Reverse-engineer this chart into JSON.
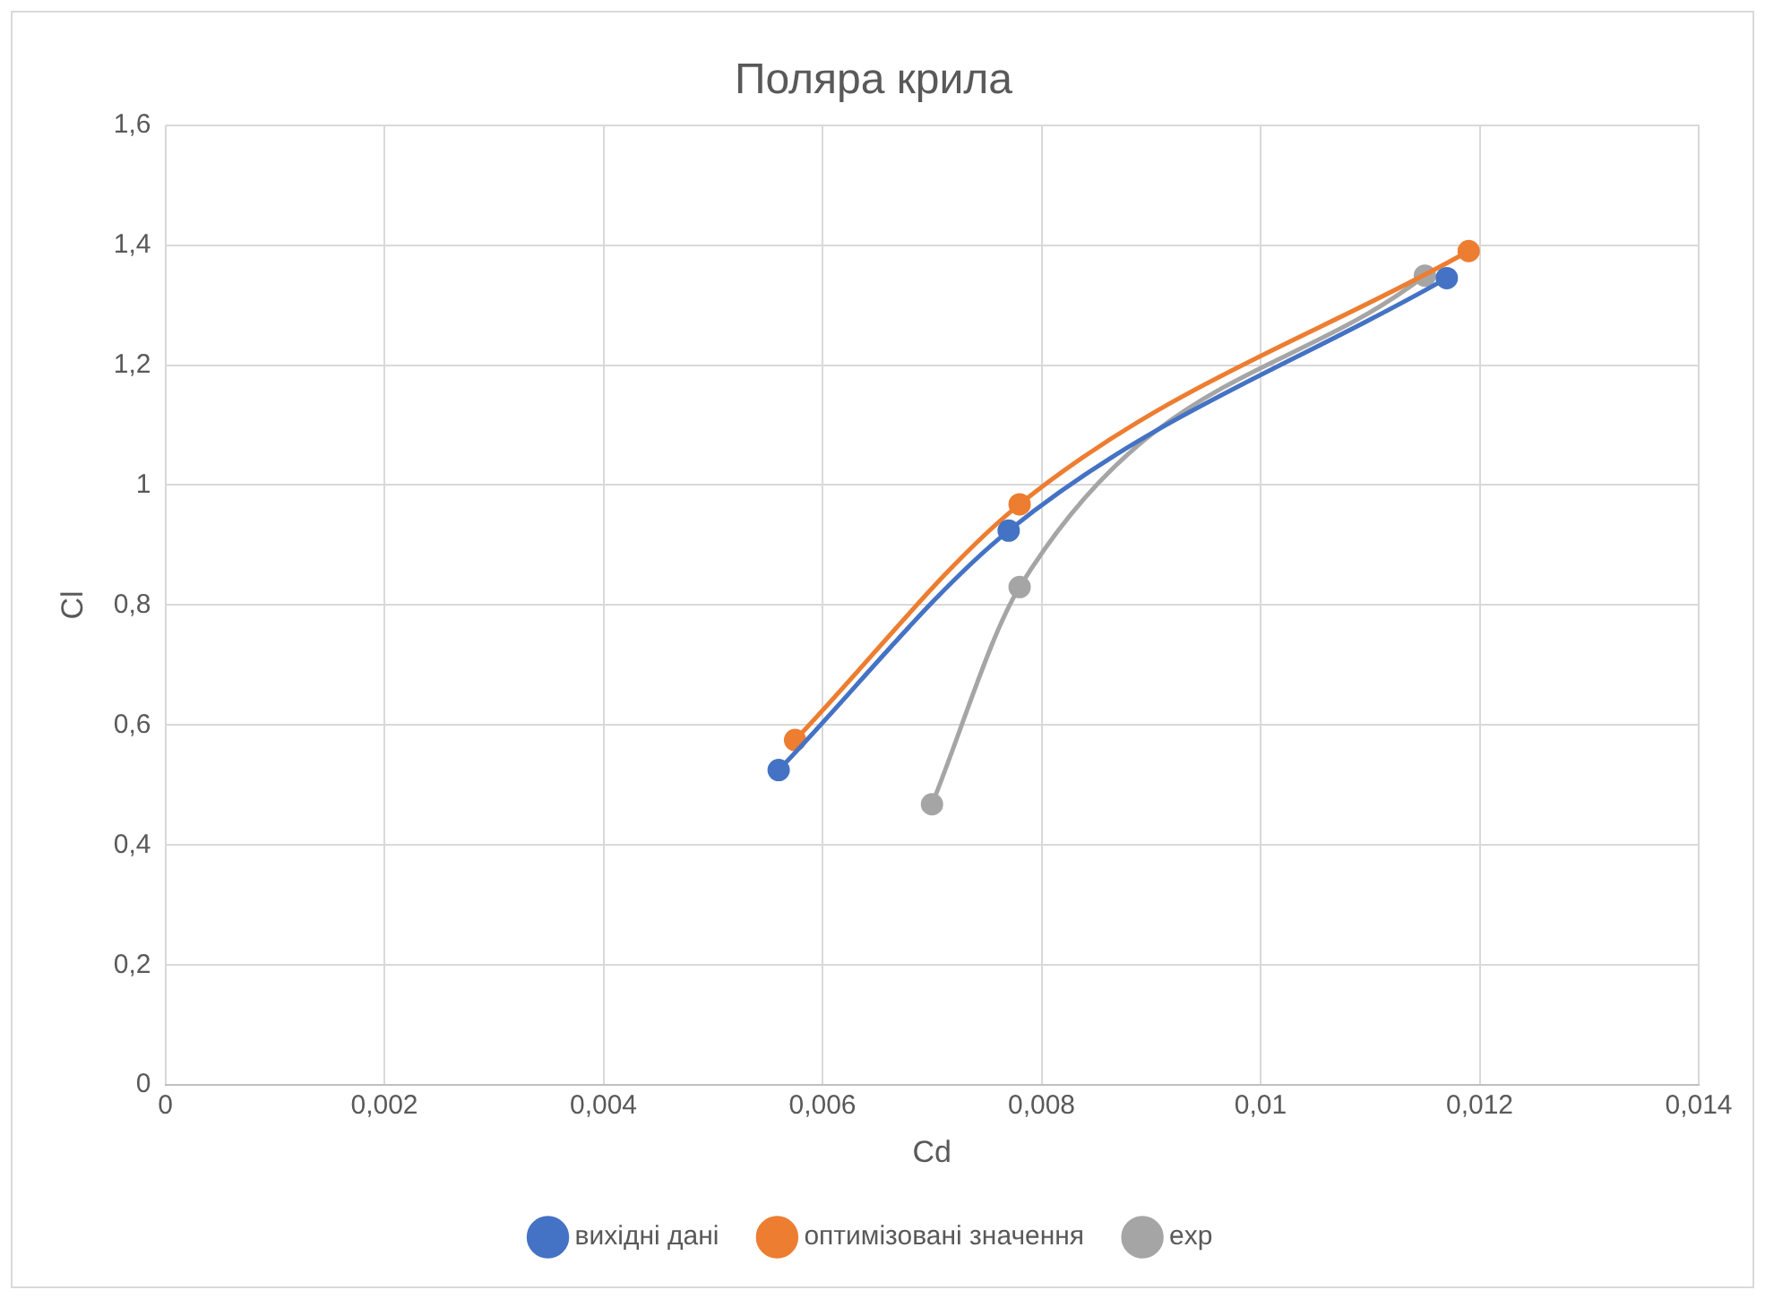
{
  "chart_data": {
    "type": "line",
    "title": "Поляра крила",
    "xlabel": "Cd",
    "ylabel": "Cl",
    "series": [
      {
        "name": "вихідні дані",
        "color": "#4472c4",
        "x": [
          0.0056,
          0.0077,
          0.0117
        ],
        "values": [
          0.525,
          0.924,
          1.345
        ]
      },
      {
        "name": "оптимізовані значення",
        "color": "#ed7d31",
        "x": [
          0.00575,
          0.0078,
          0.0119
        ],
        "values": [
          0.575,
          0.968,
          1.39
        ]
      },
      {
        "name": "exp",
        "color": "#a5a5a5",
        "x": [
          0.007,
          0.0078,
          0.0115
        ],
        "values": [
          0.468,
          0.83,
          1.349
        ]
      }
    ],
    "xlim": [
      0,
      0.014
    ],
    "xticks": [
      0,
      {
        "value": 0.002,
        "label": "0,002"
      },
      {
        "value": 0.004,
        "label": "0,004"
      },
      {
        "value": 0.006,
        "label": "0,006"
      },
      {
        "value": 0.008,
        "label": "0,008"
      },
      {
        "value": 0.01,
        "label": "0,01"
      },
      {
        "value": 0.012,
        "label": "0,012"
      },
      {
        "value": 0.014,
        "label": "0,014"
      }
    ],
    "ylim": [
      0,
      1.6
    ],
    "yticks": [
      0,
      {
        "value": 0.2,
        "label": "0,2"
      },
      {
        "value": 0.4,
        "label": "0,4"
      },
      {
        "value": 0.6,
        "label": "0,6"
      },
      {
        "value": 0.8,
        "label": "0,8"
      },
      1,
      {
        "value": 1.2,
        "label": "1,2"
      },
      {
        "value": 1.4,
        "label": "1,4"
      },
      {
        "value": 1.6,
        "label": "1,6"
      }
    ],
    "grid": true,
    "legend": "bottom",
    "marker": "circle",
    "line_style": "solid"
  }
}
